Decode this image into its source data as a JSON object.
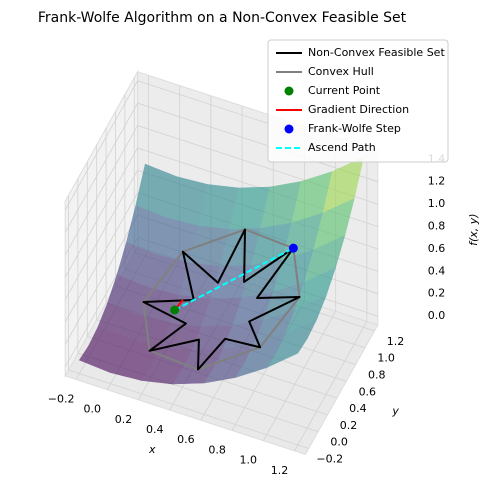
{
  "chart_data": {
    "type": "surface3d",
    "title": "Frank-Wolfe Algorithm on a Non-Convex Feasible Set",
    "xlabel": "x",
    "ylabel": "y",
    "zlabel": "f(x, y)",
    "xlim": [
      -0.27,
      1.27
    ],
    "ylim": [
      -0.27,
      1.27
    ],
    "zlim": [
      -0.08,
      1.48
    ],
    "xticks": [
      {
        "value": -0.2,
        "label": "−0.2"
      },
      {
        "value": 0,
        "label": "0.0"
      },
      0.2,
      0.4,
      0.6,
      0.8,
      {
        "value": 1,
        "label": "1.0"
      },
      1.2
    ],
    "yticks": [
      {
        "value": -0.2,
        "label": "−0.2"
      },
      {
        "value": 0,
        "label": "0.0"
      },
      0.2,
      0.4,
      0.6,
      0.8,
      {
        "value": 1,
        "label": "1.0"
      },
      1.2
    ],
    "zticks": [
      {
        "value": 0,
        "label": "0.0"
      },
      0.2,
      0.4,
      0.6,
      0.8,
      {
        "value": 1,
        "label": "1.0"
      },
      1.2,
      1.4
    ],
    "grid": true,
    "legend": "upper right",
    "surface": {
      "colormap": "viridis",
      "alpha": 0.6,
      "x": [
        -0.2,
        0,
        0.2,
        0.4,
        0.6,
        0.8,
        1.0,
        1.2
      ],
      "y": [
        -0.2,
        0,
        0.2,
        0.4,
        0.6,
        0.8,
        1.0,
        1.2
      ],
      "z": [
        [
          0.04,
          0.02,
          0.04,
          0.1,
          0.2,
          0.34,
          0.52,
          0.74
        ],
        [
          0.02,
          0,
          0.02,
          0.08,
          0.18,
          0.32,
          0.5,
          0.72
        ],
        [
          0.04,
          0.02,
          0.04,
          0.1,
          0.2,
          0.34,
          0.52,
          0.74
        ],
        [
          0.1,
          0.08,
          0.1,
          0.16,
          0.26,
          0.4,
          0.58,
          0.8
        ],
        [
          0.2,
          0.18,
          0.2,
          0.26,
          0.36,
          0.5,
          0.68,
          0.9
        ],
        [
          0.34,
          0.32,
          0.34,
          0.4,
          0.5,
          0.64,
          0.82,
          1.04
        ],
        [
          0.52,
          0.5,
          0.52,
          0.58,
          0.68,
          0.82,
          1.0,
          1.22
        ],
        [
          0.74,
          0.72,
          0.74,
          0.8,
          0.9,
          1.04,
          1.22,
          1.44
        ]
      ]
    },
    "series": [
      {
        "name": "Non-Convex Feasible Set",
        "color": "black",
        "kind": "line",
        "closed": true,
        "x": [
          1.0,
          0.703,
          0.854,
          0.584,
          0.5,
          0.416,
          0.146,
          0.297,
          0.0,
          0.297,
          0.146,
          0.416,
          0.5,
          0.584,
          0.854,
          0.703
        ],
        "y": [
          0.5,
          0.584,
          0.854,
          0.703,
          1.0,
          0.703,
          0.854,
          0.584,
          0.5,
          0.416,
          0.146,
          0.297,
          0.0,
          0.297,
          0.146,
          0.416
        ],
        "z": [
          0.625,
          0.418,
          0.729,
          0.418,
          0.625,
          0.334,
          0.375,
          0.215,
          0.125,
          0.131,
          0.021,
          0.131,
          0.125,
          0.215,
          0.375,
          0.334
        ]
      },
      {
        "name": "Convex Hull",
        "color": "gray",
        "kind": "line",
        "closed": true,
        "x": [
          1.0,
          0.854,
          0.5,
          0.146,
          0.0,
          0.146,
          0.5,
          0.854
        ],
        "y": [
          0.5,
          0.854,
          1.0,
          0.854,
          0.5,
          0.146,
          0.0,
          0.146
        ],
        "z": [
          0.625,
          0.729,
          0.625,
          0.375,
          0.125,
          0.021,
          0.125,
          0.375
        ]
      },
      {
        "name": "Current Point",
        "color": "green",
        "kind": "scatter",
        "x": [
          0.2
        ],
        "y": [
          0.5
        ],
        "z": [
          0.145
        ]
      },
      {
        "name": "Gradient Direction",
        "color": "red",
        "kind": "line",
        "x": [
          0.2,
          0.23
        ],
        "y": [
          0.5,
          0.575
        ],
        "z": [
          0.145,
          0.192
        ]
      },
      {
        "name": "Frank-Wolfe Step",
        "color": "blue",
        "kind": "scatter",
        "x": [
          0.854
        ],
        "y": [
          0.854
        ],
        "z": [
          0.729
        ]
      },
      {
        "name": "Ascend Path",
        "color": "cyan",
        "kind": "dashed",
        "x": [
          0.2,
          0.854
        ],
        "y": [
          0.5,
          0.854
        ],
        "z": [
          0.145,
          0.729
        ]
      }
    ]
  }
}
